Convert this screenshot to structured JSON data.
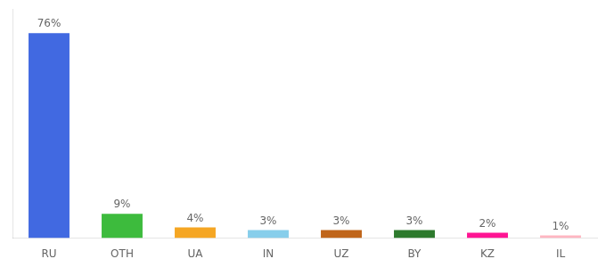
{
  "chart_data": {
    "type": "bar",
    "categories": [
      "RU",
      "OTH",
      "UA",
      "IN",
      "UZ",
      "BY",
      "KZ",
      "IL"
    ],
    "values": [
      76,
      9,
      4,
      3,
      3,
      3,
      2,
      1
    ],
    "value_labels": [
      "76%",
      "9%",
      "4%",
      "3%",
      "3%",
      "3%",
      "2%",
      "1%"
    ],
    "colors": [
      "#4169e1",
      "#3dbb3d",
      "#f5a623",
      "#87ceeb",
      "#c0651a",
      "#2d7a2d",
      "#ff1493",
      "#ffb6c1"
    ],
    "ylim": [
      0,
      85
    ],
    "grid": false,
    "legend": false,
    "data_labels": true,
    "tick_labels": "x"
  }
}
